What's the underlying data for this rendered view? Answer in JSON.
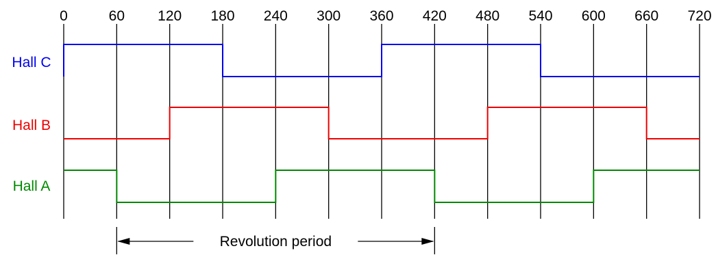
{
  "diagram": {
    "angles": [
      0,
      60,
      120,
      180,
      240,
      300,
      360,
      420,
      480,
      540,
      600,
      660,
      720
    ],
    "tick_labels": [
      "0",
      "60",
      "120",
      "180",
      "240",
      "300",
      "360",
      "420",
      "480",
      "540",
      "600",
      "660",
      "720"
    ],
    "signals": [
      {
        "id": "hall-c",
        "label": "Hall C",
        "color": "#0000ee",
        "transitions": [
          0,
          180,
          360,
          540
        ],
        "initial_state": "high"
      },
      {
        "id": "hall-b",
        "label": "Hall B",
        "color": "#ee0000",
        "transitions": [
          120,
          300,
          480,
          660
        ],
        "initial_state": "low"
      },
      {
        "id": "hall-a",
        "label": "Hall A",
        "color": "#008800",
        "transitions": [
          60,
          240,
          420,
          600
        ],
        "initial_state": "high"
      }
    ],
    "revolution_period": {
      "label": "Revolution period",
      "start": 60,
      "end": 420
    }
  }
}
